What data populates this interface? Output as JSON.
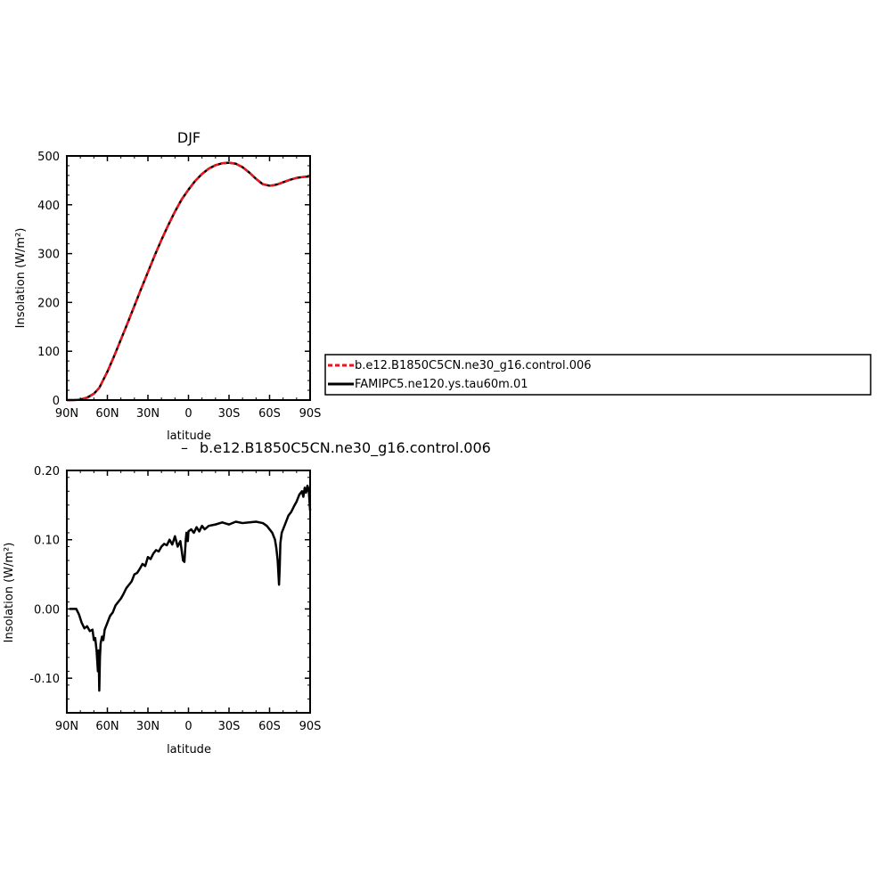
{
  "chart_data": [
    {
      "type": "line",
      "title": "DJF",
      "xlabel": "latitude",
      "ylabel": "Insolation  (W/m²)",
      "x_direction": "north-to-south",
      "xlim": [
        90,
        -90
      ],
      "ylim": [
        0,
        500
      ],
      "xticks": [
        90,
        60,
        30,
        0,
        -30,
        -60,
        -90
      ],
      "xtick_labels": [
        "90N",
        "60N",
        "30N",
        "0",
        "30S",
        "60S",
        "90S"
      ],
      "yticks": [
        0,
        100,
        200,
        300,
        400,
        500
      ],
      "ytick_labels": [
        "0",
        "100",
        "200",
        "300",
        "400",
        "500"
      ],
      "x": [
        90,
        85,
        80,
        75,
        70,
        66,
        60,
        55,
        50,
        45,
        40,
        35,
        30,
        25,
        20,
        15,
        10,
        5,
        0,
        -5,
        -10,
        -15,
        -20,
        -25,
        -30,
        -35,
        -40,
        -45,
        -50,
        -55,
        -60,
        -63,
        -66,
        -70,
        -75,
        -80,
        -85,
        -90
      ],
      "series": [
        {
          "name": "b.e12.B1850C5CN.ne30_g16.control.006",
          "color": "#e8161b",
          "dash": "dashed",
          "values": [
            0,
            0,
            1,
            5,
            13,
            25,
            58,
            90,
            124,
            158,
            193,
            228,
            262,
            296,
            328,
            358,
            386,
            411,
            431,
            449,
            463,
            474,
            481,
            485,
            486,
            484,
            477,
            466,
            453,
            442,
            439,
            440,
            442,
            446,
            451,
            455,
            457,
            458
          ]
        },
        {
          "name": "FAMIPC5.ne120.ys.tau60m.01",
          "color": "#000000",
          "dash": "solid",
          "values": [
            0,
            0,
            1,
            5,
            13,
            25,
            58,
            90,
            124,
            158,
            193,
            228,
            262,
            296,
            328,
            358,
            386,
            411,
            431,
            449,
            463,
            474,
            481,
            485,
            486,
            484,
            477,
            466,
            453,
            442,
            439,
            440,
            442,
            446,
            451,
            455,
            457,
            458
          ]
        }
      ],
      "legend": {
        "placement": "right",
        "entries": [
          "b.e12.B1850C5CN.ne30_g16.control.006",
          "FAMIPC5.ne120.ys.tau60m.01"
        ]
      }
    },
    {
      "type": "line",
      "subtitle": "b.e12.B1850C5CN.ne30_g16.control.006",
      "subtitle_prefix": "–",
      "xlabel": "latitude",
      "ylabel": "Insolation  (W/m²)",
      "x_direction": "north-to-south",
      "xlim": [
        90,
        -90
      ],
      "ylim": [
        -0.15,
        0.2
      ],
      "xticks": [
        90,
        60,
        30,
        0,
        -30,
        -60,
        -90
      ],
      "xtick_labels": [
        "90N",
        "60N",
        "30N",
        "0",
        "30S",
        "60S",
        "90S"
      ],
      "yticks": [
        -0.1,
        0,
        0.1,
        0.2
      ],
      "ytick_labels": [
        "-0.10",
        "0.00",
        "0.10",
        "0.20"
      ],
      "x": [
        88,
        83,
        81,
        79,
        77,
        75,
        73,
        71,
        70,
        69,
        68,
        67,
        66.5,
        66,
        65.5,
        65,
        64,
        63,
        62,
        60,
        58,
        56,
        54,
        52,
        50,
        48,
        46,
        44,
        42,
        40,
        38,
        36,
        34,
        32,
        30,
        28,
        26,
        24,
        22,
        20,
        18,
        16,
        14,
        12,
        10,
        8,
        6,
        4,
        3,
        2,
        1.5,
        1,
        0.5,
        0,
        -2,
        -4,
        -6,
        -8,
        -10,
        -12,
        -15,
        -20,
        -25,
        -30,
        -35,
        -40,
        -45,
        -50,
        -55,
        -58,
        -60,
        -62,
        -64,
        -65,
        -66,
        -67,
        -67.5,
        -68,
        -69,
        -70,
        -72,
        -74,
        -76,
        -78,
        -80,
        -82,
        -84,
        -85,
        -86,
        -87,
        -88,
        -89,
        -90
      ],
      "series": [
        {
          "name": "",
          "color": "#000000",
          "values": [
            0.0,
            0.0,
            -0.008,
            -0.02,
            -0.028,
            -0.025,
            -0.032,
            -0.03,
            -0.045,
            -0.042,
            -0.06,
            -0.09,
            -0.06,
            -0.118,
            -0.07,
            -0.05,
            -0.04,
            -0.045,
            -0.03,
            -0.02,
            -0.01,
            -0.005,
            0.005,
            0.01,
            0.015,
            0.022,
            0.03,
            0.035,
            0.04,
            0.05,
            0.052,
            0.058,
            0.065,
            0.062,
            0.075,
            0.072,
            0.08,
            0.085,
            0.083,
            0.09,
            0.094,
            0.092,
            0.1,
            0.093,
            0.105,
            0.09,
            0.098,
            0.07,
            0.068,
            0.1,
            0.11,
            0.108,
            0.098,
            0.112,
            0.115,
            0.11,
            0.118,
            0.112,
            0.12,
            0.115,
            0.12,
            0.122,
            0.125,
            0.122,
            0.126,
            0.124,
            0.125,
            0.126,
            0.124,
            0.12,
            0.115,
            0.11,
            0.1,
            0.088,
            0.07,
            0.035,
            0.06,
            0.095,
            0.11,
            0.115,
            0.125,
            0.135,
            0.14,
            0.148,
            0.155,
            0.165,
            0.17,
            0.162,
            0.175,
            0.168,
            0.178,
            0.172,
            0.142
          ]
        }
      ]
    }
  ]
}
